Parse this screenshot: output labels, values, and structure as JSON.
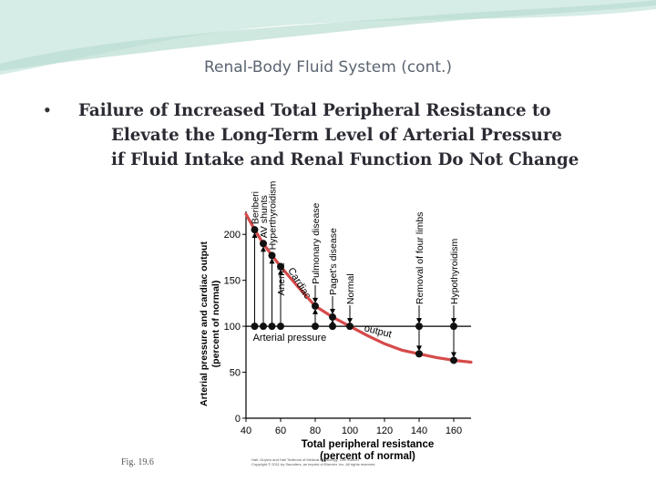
{
  "slide": {
    "title": "Renal-Body Fluid System (cont.)",
    "bullet_lines": [
      "Failure of Increased Total Peripheral Resistance to",
      "Elevate the Long-Term Level of Arterial Pressure",
      "if Fluid Intake and Renal Function Do Not Change"
    ],
    "figure_label": "Fig. 19.6",
    "credit_lines": [
      "Hall: Guyton and Hall Textbook of Medical Physiology, 12th Edition",
      "Copyright © 2011 by Saunders, an imprint of Elsevier, Inc. All rights reserved."
    ]
  },
  "colors": {
    "background_wave": "#d6ece6",
    "background_wave_dark": "#b9ddd2",
    "curve": "#d64a4a",
    "text": "#2b2b33",
    "title": "#5b6470"
  },
  "chart_data": {
    "type": "line",
    "xlabel": "Total peripheral resistance",
    "xlabel_sub": "(percent of normal)",
    "ylabel": "Arterial pressure  and cardiac output",
    "ylabel_sub": "(percent of normal)",
    "xlim": [
      40,
      170
    ],
    "ylim": [
      0,
      225
    ],
    "xticks": [
      40,
      60,
      80,
      100,
      120,
      140,
      160
    ],
    "yticks": [
      0,
      50,
      100,
      150,
      200
    ],
    "series": [
      {
        "name": "Arterial pressure",
        "values": [
          [
            40,
            100
          ],
          [
            170,
            100
          ]
        ],
        "points": [
          [
            45,
            100
          ],
          [
            50,
            100
          ],
          [
            55,
            100
          ],
          [
            60,
            100
          ],
          [
            80,
            100
          ],
          [
            90,
            100
          ],
          [
            100,
            100
          ],
          [
            140,
            100
          ],
          [
            160,
            100
          ]
        ]
      },
      {
        "name": "output",
        "curve": [
          [
            40,
            222
          ],
          [
            45,
            205
          ],
          [
            50,
            190
          ],
          [
            55,
            177
          ],
          [
            60,
            165
          ],
          [
            70,
            143
          ],
          [
            80,
            122
          ],
          [
            90,
            110
          ],
          [
            100,
            100
          ],
          [
            110,
            90
          ],
          [
            120,
            81
          ],
          [
            130,
            74
          ],
          [
            140,
            70
          ],
          [
            150,
            66
          ],
          [
            160,
            63
          ],
          [
            170,
            61
          ]
        ],
        "points": [
          [
            45,
            205
          ],
          [
            50,
            190
          ],
          [
            55,
            177
          ],
          [
            60,
            165
          ],
          [
            80,
            122
          ],
          [
            90,
            110
          ],
          [
            100,
            100
          ],
          [
            140,
            70
          ],
          [
            160,
            63
          ]
        ]
      }
    ],
    "annotations": [
      {
        "text": "Beriberi",
        "x": 45
      },
      {
        "text": "AV shunts",
        "x": 50
      },
      {
        "text": "Hyperthyroidism",
        "x": 55
      },
      {
        "text": "Anemia",
        "x": 60
      },
      {
        "text": "Pulmonary disease",
        "x": 80
      },
      {
        "text": "Paget's disease",
        "x": 90
      },
      {
        "text": "Normal",
        "x": 100
      },
      {
        "text": "Removal of four limbs",
        "x": 140
      },
      {
        "text": "Hypothyroidism",
        "x": 160
      }
    ],
    "curve_labels": [
      "Cardiac",
      "output"
    ],
    "arterial_label": "Arterial pressure"
  }
}
